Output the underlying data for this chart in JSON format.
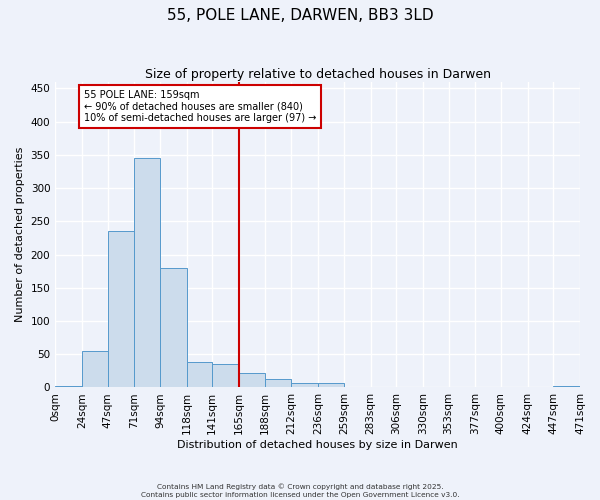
{
  "title": "55, POLE LANE, DARWEN, BB3 3LD",
  "subtitle": "Size of property relative to detached houses in Darwen",
  "xlabel": "Distribution of detached houses by size in Darwen",
  "ylabel": "Number of detached properties",
  "bar_color": "#ccdcec",
  "bar_edge_color": "#5599cc",
  "background_color": "#eef2fa",
  "grid_color": "#ffffff",
  "tick_values": [
    0,
    24,
    47,
    71,
    94,
    118,
    141,
    165,
    188,
    212,
    236,
    259,
    283,
    306,
    330,
    353,
    377,
    400,
    424,
    447,
    471
  ],
  "bin_labels": [
    "0sqm",
    "24sqm",
    "47sqm",
    "71sqm",
    "94sqm",
    "118sqm",
    "141sqm",
    "165sqm",
    "188sqm",
    "212sqm",
    "236sqm",
    "259sqm",
    "283sqm",
    "306sqm",
    "330sqm",
    "353sqm",
    "377sqm",
    "400sqm",
    "424sqm",
    "447sqm",
    "471sqm"
  ],
  "counts": [
    2,
    55,
    235,
    345,
    180,
    38,
    35,
    22,
    12,
    6,
    7,
    0,
    0,
    0,
    0,
    0,
    0,
    0,
    0,
    2
  ],
  "vline_x": 165,
  "vline_color": "#cc0000",
  "annotation_title": "55 POLE LANE: 159sqm",
  "annotation_line1": "← 90% of detached houses are smaller (840)",
  "annotation_line2": "10% of semi-detached houses are larger (97) →",
  "annotation_box_color": "#ffffff",
  "annotation_box_edge": "#cc0000",
  "ylim": [
    0,
    460
  ],
  "yticks": [
    0,
    50,
    100,
    150,
    200,
    250,
    300,
    350,
    400,
    450
  ],
  "footer1": "Contains HM Land Registry data © Crown copyright and database right 2025.",
  "footer2": "Contains public sector information licensed under the Open Government Licence v3.0."
}
